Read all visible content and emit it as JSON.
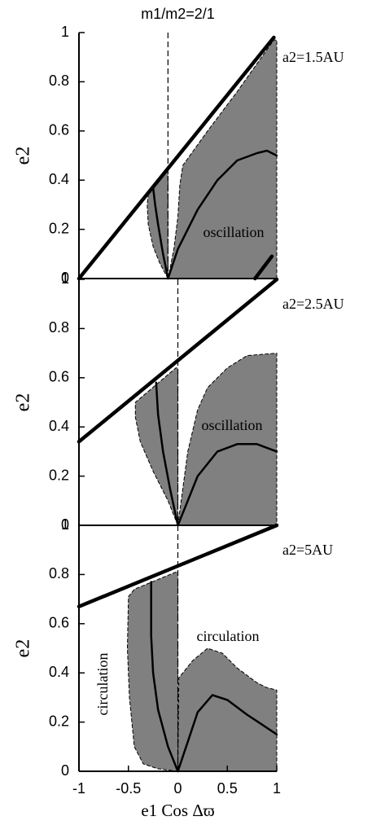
{
  "chart_data": [
    {
      "type": "line",
      "title": "m1/m2=2/1",
      "label": "a2=1.5AU",
      "ylabel": "e2",
      "xlim": [
        -1,
        1
      ],
      "ylim": [
        0,
        1
      ],
      "yticks": [
        0,
        0.2,
        0.4,
        0.6,
        0.8,
        1
      ],
      "vline": -0.1,
      "annotations": [
        "oscillation"
      ],
      "series": [
        {
          "style": "fill",
          "color": "#808080",
          "x": [
            -0.1,
            -0.18,
            -0.25,
            -0.3,
            -0.31,
            -0.3,
            -0.1,
            -0.1
          ],
          "values": [
            0,
            0.06,
            0.13,
            0.22,
            0.3,
            0.34,
            0.44,
            0
          ]
        },
        {
          "style": "fill",
          "color": "#808080",
          "x": [
            -0.1,
            -0.04,
            0,
            0.02,
            0.05,
            0.3,
            0.6,
            0.97,
            1,
            1,
            -0.1
          ],
          "values": [
            0,
            0.12,
            0.25,
            0.38,
            0.46,
            0.6,
            0.76,
            0.97,
            0.97,
            0,
            0
          ]
        },
        {
          "style": "thick",
          "color": "#000000",
          "x": [
            -1,
            0.97
          ],
          "values": [
            0,
            0.98
          ]
        },
        {
          "style": "thick",
          "color": "#000000",
          "x": [
            0.78,
            0.95
          ],
          "values": [
            0,
            0.09
          ]
        },
        {
          "style": "curve",
          "color": "#000000",
          "x": [
            -0.1,
            -0.15,
            -0.2,
            -0.23,
            -0.25
          ],
          "values": [
            0,
            0.1,
            0.22,
            0.3,
            0.37
          ]
        },
        {
          "style": "curve",
          "color": "#000000",
          "x": [
            -0.1,
            0,
            0.2,
            0.4,
            0.6,
            0.8,
            0.9,
            1
          ],
          "values": [
            0,
            0.12,
            0.28,
            0.4,
            0.48,
            0.51,
            0.52,
            0.5
          ]
        }
      ]
    },
    {
      "type": "line",
      "label": "a2=2.5AU",
      "ylabel": "e2",
      "xlim": [
        -1,
        1
      ],
      "ylim": [
        0,
        1
      ],
      "yticks": [
        0,
        0.2,
        0.4,
        0.6,
        0.8,
        1
      ],
      "vline": 0,
      "annotations": [
        "oscillation"
      ],
      "series": [
        {
          "style": "fill",
          "color": "#808080",
          "x": [
            0,
            -0.1,
            -0.25,
            -0.38,
            -0.43,
            -0.43,
            -0.02,
            0,
            0
          ],
          "values": [
            0,
            0.1,
            0.22,
            0.34,
            0.44,
            0.5,
            0.64,
            0.64,
            0
          ]
        },
        {
          "style": "fill",
          "color": "#808080",
          "x": [
            0,
            0.05,
            0.1,
            0.2,
            0.3,
            0.5,
            0.7,
            1,
            1,
            0
          ],
          "values": [
            0,
            0.15,
            0.3,
            0.47,
            0.56,
            0.64,
            0.69,
            0.7,
            0,
            0
          ]
        },
        {
          "style": "thick",
          "color": "#000000",
          "x": [
            -1,
            1
          ],
          "values": [
            0.34,
            1
          ]
        },
        {
          "style": "curve",
          "color": "#000000",
          "x": [
            0,
            -0.08,
            -0.15,
            -0.2,
            -0.22
          ],
          "values": [
            0,
            0.15,
            0.3,
            0.45,
            0.58
          ]
        },
        {
          "style": "curve",
          "color": "#000000",
          "x": [
            0,
            0.1,
            0.2,
            0.4,
            0.6,
            0.8,
            1
          ],
          "values": [
            0,
            0.1,
            0.2,
            0.3,
            0.33,
            0.33,
            0.3
          ]
        }
      ]
    },
    {
      "type": "line",
      "label": "a2=5AU",
      "ylabel": "e2",
      "xlabel": "e1 Cos Δϖ",
      "xlim": [
        -1,
        1
      ],
      "xticks": [
        -1,
        -0.5,
        0,
        0.5,
        1
      ],
      "ylim": [
        0,
        1
      ],
      "yticks": [
        0,
        0.2,
        0.4,
        0.6,
        0.8,
        1
      ],
      "vline": 0,
      "annotations": [
        "circulation",
        "circulation"
      ],
      "series": [
        {
          "style": "fill",
          "color": "#808080",
          "x": [
            0,
            -0.2,
            -0.35,
            -0.44,
            -0.49,
            -0.51,
            -0.5,
            -0.44,
            -0.02,
            0,
            0
          ],
          "values": [
            0,
            0.01,
            0.03,
            0.1,
            0.3,
            0.5,
            0.71,
            0.74,
            0.81,
            0.81,
            0
          ]
        },
        {
          "style": "fill",
          "color": "#808080",
          "x": [
            0,
            0.01,
            0.05,
            0.15,
            0.3,
            0.45,
            0.6,
            0.8,
            0.9,
            1,
            1,
            0
          ],
          "values": [
            0,
            0.38,
            0.4,
            0.45,
            0.5,
            0.48,
            0.42,
            0.36,
            0.34,
            0.33,
            0,
            0
          ]
        },
        {
          "style": "thick",
          "color": "#000000",
          "x": [
            -1,
            1
          ],
          "values": [
            0.67,
            1
          ]
        },
        {
          "style": "curve",
          "color": "#000000",
          "x": [
            0,
            -0.1,
            -0.2,
            -0.25,
            -0.27,
            -0.27
          ],
          "values": [
            0,
            0.1,
            0.25,
            0.4,
            0.55,
            0.77
          ]
        },
        {
          "style": "curve",
          "color": "#000000",
          "x": [
            0,
            0.1,
            0.2,
            0.35,
            0.5,
            0.7,
            0.85,
            1
          ],
          "values": [
            0,
            0.12,
            0.24,
            0.31,
            0.29,
            0.23,
            0.19,
            0.15
          ]
        }
      ]
    }
  ]
}
